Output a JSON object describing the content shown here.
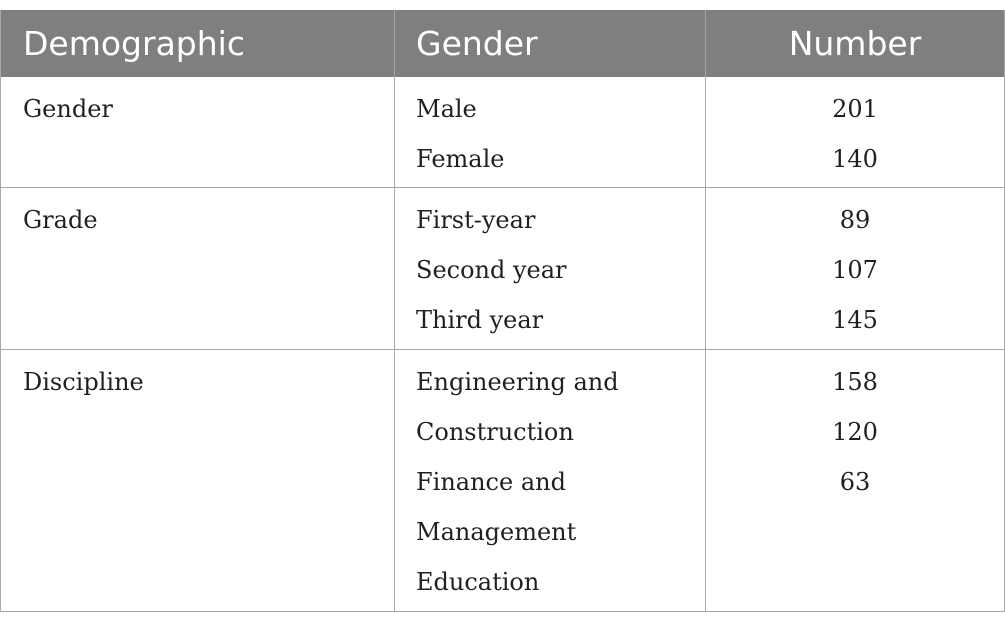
{
  "table": {
    "headers": [
      "Demographic",
      "Gender",
      "Number"
    ],
    "groups": [
      {
        "demographic": "Gender",
        "items": [
          "Male",
          "Female"
        ],
        "numbers": [
          "201",
          "140"
        ]
      },
      {
        "demographic": "Grade",
        "items": [
          "First-year",
          "Second year",
          "Third year"
        ],
        "numbers": [
          "89",
          "107",
          "145"
        ]
      },
      {
        "demographic": "Discipline",
        "items": [
          "Engineering and",
          "Construction",
          "Finance and",
          "Management",
          "Education"
        ],
        "numbers": [
          "158",
          "120",
          "63"
        ]
      }
    ]
  },
  "colors": {
    "header_background": "#7e807f",
    "header_text": "#ffffff",
    "border": "#a8a8a8",
    "body_text": "#231f20"
  }
}
